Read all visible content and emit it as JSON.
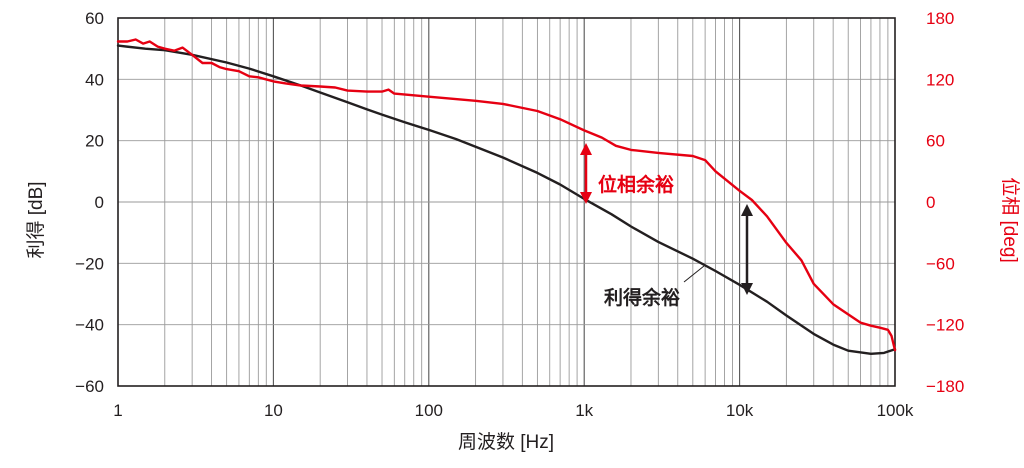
{
  "colors": {
    "gain": "#231f20",
    "phase": "#e60012",
    "grid": "#9a9a9a",
    "frame": "#231f20"
  },
  "chart_data": {
    "type": "line",
    "title": "",
    "xlabel": "周波数 [Hz]",
    "ylabel": "利得 [dB]",
    "y2label": "位相 [deg]",
    "xscale": "log",
    "xlim": [
      1,
      100000
    ],
    "ylim": [
      -60,
      60
    ],
    "y2lim": [
      -180,
      180
    ],
    "grid": true,
    "x_ticks": [
      {
        "value": 1,
        "label": "1"
      },
      {
        "value": 10,
        "label": "10"
      },
      {
        "value": 100,
        "label": "100"
      },
      {
        "value": 1000,
        "label": "1k"
      },
      {
        "value": 10000,
        "label": "10k"
      },
      {
        "value": 100000,
        "label": "100k"
      }
    ],
    "y_ticks": [
      {
        "value": 60,
        "label": "60"
      },
      {
        "value": 40,
        "label": "40"
      },
      {
        "value": 20,
        "label": "20"
      },
      {
        "value": 0,
        "label": "0"
      },
      {
        "value": -20,
        "label": "−20"
      },
      {
        "value": -40,
        "label": "−40"
      },
      {
        "value": -60,
        "label": "−60"
      }
    ],
    "y2_ticks": [
      {
        "value": 180,
        "label": "180"
      },
      {
        "value": 120,
        "label": "120"
      },
      {
        "value": 60,
        "label": "60"
      },
      {
        "value": 0,
        "label": "0"
      },
      {
        "value": -60,
        "label": "−60"
      },
      {
        "value": -120,
        "label": "−120"
      },
      {
        "value": -180,
        "label": "−180"
      }
    ],
    "series": [
      {
        "axis": "left",
        "color": "#231f20",
        "points": [
          [
            1,
            51
          ],
          [
            1.5,
            50
          ],
          [
            2,
            49.5
          ],
          [
            3,
            48
          ],
          [
            5,
            45.5
          ],
          [
            7,
            43.5
          ],
          [
            10,
            41
          ],
          [
            15,
            38
          ],
          [
            20,
            35.7
          ],
          [
            30,
            32.5
          ],
          [
            40,
            30.2
          ],
          [
            50,
            28.5
          ],
          [
            70,
            26
          ],
          [
            100,
            23.5
          ],
          [
            150,
            20.5
          ],
          [
            200,
            18
          ],
          [
            300,
            14.5
          ],
          [
            500,
            9.5
          ],
          [
            700,
            5.7
          ],
          [
            1000,
            1
          ],
          [
            1500,
            -4
          ],
          [
            2000,
            -8
          ],
          [
            3000,
            -13
          ],
          [
            5000,
            -18.5
          ],
          [
            7000,
            -22.5
          ],
          [
            10000,
            -27
          ],
          [
            15000,
            -32.5
          ],
          [
            20000,
            -37
          ],
          [
            30000,
            -43
          ],
          [
            40000,
            -46.5
          ],
          [
            50000,
            -48.5
          ],
          [
            70000,
            -49.5
          ],
          [
            85000,
            -49.2
          ],
          [
            100000,
            -48
          ]
        ]
      },
      {
        "axis": "right",
        "color": "#e60012",
        "points": [
          [
            1,
            157
          ],
          [
            1.15,
            157
          ],
          [
            1.3,
            159
          ],
          [
            1.45,
            155
          ],
          [
            1.6,
            157
          ],
          [
            1.8,
            152
          ],
          [
            2,
            150
          ],
          [
            2.3,
            148
          ],
          [
            2.6,
            151
          ],
          [
            3,
            144
          ],
          [
            3.5,
            136
          ],
          [
            4,
            136
          ],
          [
            4.5,
            132
          ],
          [
            5,
            130
          ],
          [
            6,
            128
          ],
          [
            7,
            123
          ],
          [
            8,
            122
          ],
          [
            10,
            118
          ],
          [
            12,
            116
          ],
          [
            15,
            114
          ],
          [
            20,
            113
          ],
          [
            25,
            112
          ],
          [
            30,
            109
          ],
          [
            40,
            108
          ],
          [
            50,
            108
          ],
          [
            55,
            110
          ],
          [
            60,
            106
          ],
          [
            100,
            103
          ],
          [
            200,
            99
          ],
          [
            300,
            96
          ],
          [
            500,
            89
          ],
          [
            700,
            81
          ],
          [
            1000,
            70
          ],
          [
            1300,
            63
          ],
          [
            1600,
            55
          ],
          [
            2000,
            51
          ],
          [
            3000,
            48
          ],
          [
            5000,
            45
          ],
          [
            6000,
            41
          ],
          [
            7000,
            30
          ],
          [
            10000,
            11
          ],
          [
            12000,
            2
          ],
          [
            15000,
            -14
          ],
          [
            20000,
            -40
          ],
          [
            25000,
            -57
          ],
          [
            30000,
            -80
          ],
          [
            40000,
            -100
          ],
          [
            50000,
            -110
          ],
          [
            60000,
            -118
          ],
          [
            70000,
            -121
          ],
          [
            80000,
            -123
          ],
          [
            90000,
            -125
          ],
          [
            95000,
            -131
          ],
          [
            100000,
            -145
          ]
        ]
      }
    ],
    "annotations": [
      {
        "text": "位相余裕",
        "color": "#e60012"
      },
      {
        "text": "利得余裕",
        "color": "#231f20"
      }
    ]
  }
}
